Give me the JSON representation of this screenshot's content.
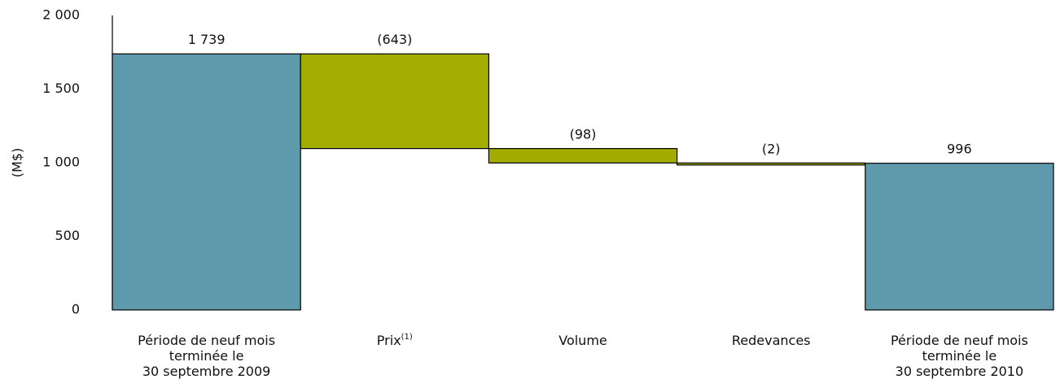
{
  "chart_data": {
    "type": "bar",
    "subtype": "waterfall",
    "ylabel": "(M$)",
    "ylim": [
      0,
      2000
    ],
    "yticks": [
      {
        "value": 0,
        "label": "0"
      },
      {
        "value": 500,
        "label": "500"
      },
      {
        "value": 1000,
        "label": "1 000"
      },
      {
        "value": 1500,
        "label": "1 500"
      },
      {
        "value": 2000,
        "label": "2 000"
      }
    ],
    "grid": false,
    "legend": "none",
    "colors": {
      "total": "#5f9aac",
      "change": "#a3ac00",
      "outline": "#000000"
    },
    "bars": [
      {
        "lines": [
          "Période de neuf mois",
          "terminée le",
          "30 septembre 2009"
        ],
        "sup": "",
        "kind": "total",
        "start": 0,
        "end": 1739,
        "label": "1 739"
      },
      {
        "lines": [
          "Prix"
        ],
        "sup": "(1)",
        "kind": "change",
        "start": 1739,
        "end": 1096,
        "label": "(643)"
      },
      {
        "lines": [
          "Volume"
        ],
        "sup": "",
        "kind": "change",
        "start": 1096,
        "end": 998,
        "label": "(98)"
      },
      {
        "lines": [
          "Redevances"
        ],
        "sup": "",
        "kind": "change",
        "start": 998,
        "end": 996,
        "label": "(2)"
      },
      {
        "lines": [
          "Période de neuf mois",
          "terminée le",
          "30 septembre 2010"
        ],
        "sup": "",
        "kind": "total",
        "start": 0,
        "end": 996,
        "label": "996"
      }
    ]
  }
}
